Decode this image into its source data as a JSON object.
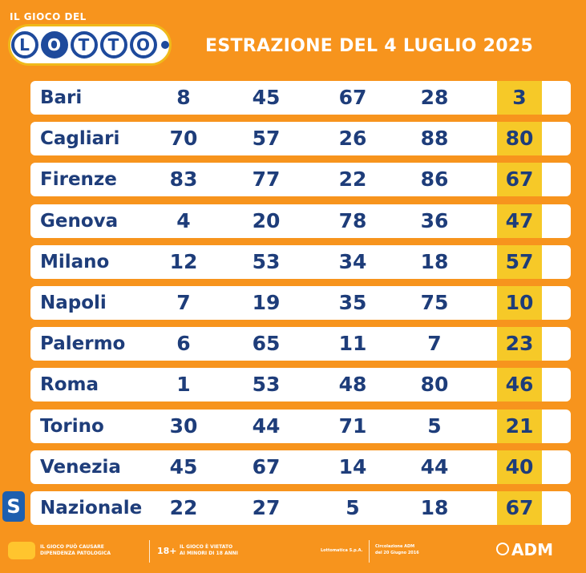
{
  "header": {
    "brand_top": "IL GIOCO DEL",
    "brand_letters": [
      "L",
      "O",
      "T",
      "T",
      "O"
    ],
    "title": "ESTRAZIONE DEL 4 LUGLIO 2025"
  },
  "results": [
    {
      "city": "Bari",
      "numbers": [
        "8",
        "45",
        "67",
        "28",
        "3"
      ]
    },
    {
      "city": "Cagliari",
      "numbers": [
        "70",
        "57",
        "26",
        "88",
        "80"
      ]
    },
    {
      "city": "Firenze",
      "numbers": [
        "83",
        "77",
        "22",
        "86",
        "67"
      ]
    },
    {
      "city": "Genova",
      "numbers": [
        "4",
        "20",
        "78",
        "36",
        "47"
      ]
    },
    {
      "city": "Milano",
      "numbers": [
        "12",
        "53",
        "34",
        "18",
        "57"
      ]
    },
    {
      "city": "Napoli",
      "numbers": [
        "7",
        "19",
        "35",
        "75",
        "10"
      ]
    },
    {
      "city": "Palermo",
      "numbers": [
        "6",
        "65",
        "11",
        "7",
        "23"
      ]
    },
    {
      "city": "Roma",
      "numbers": [
        "1",
        "53",
        "48",
        "80",
        "46"
      ]
    },
    {
      "city": "Torino",
      "numbers": [
        "30",
        "44",
        "71",
        "5",
        "21"
      ]
    },
    {
      "city": "Venezia",
      "numbers": [
        "45",
        "67",
        "14",
        "44",
        "40"
      ]
    },
    {
      "city": "Nazionale",
      "numbers": [
        "22",
        "27",
        "5",
        "18",
        "67"
      ]
    }
  ],
  "national_badge": "S",
  "footer": {
    "warning_1_line1": "IL GIOCO PUÒ CAUSARE",
    "warning_1_line2": "DIPENDENZA PATOLOGICA",
    "age_badge": "18+",
    "warning_2_line1": "IL GIOCO È VIETATO",
    "warning_2_line2": "AI MINORI DI 18 ANNI",
    "operator": "Lottomatica S.p.A.",
    "circular_line1": "Circolazione ADM",
    "circular_line2": "del 20 Giugno 2016",
    "adm": "ADM"
  }
}
